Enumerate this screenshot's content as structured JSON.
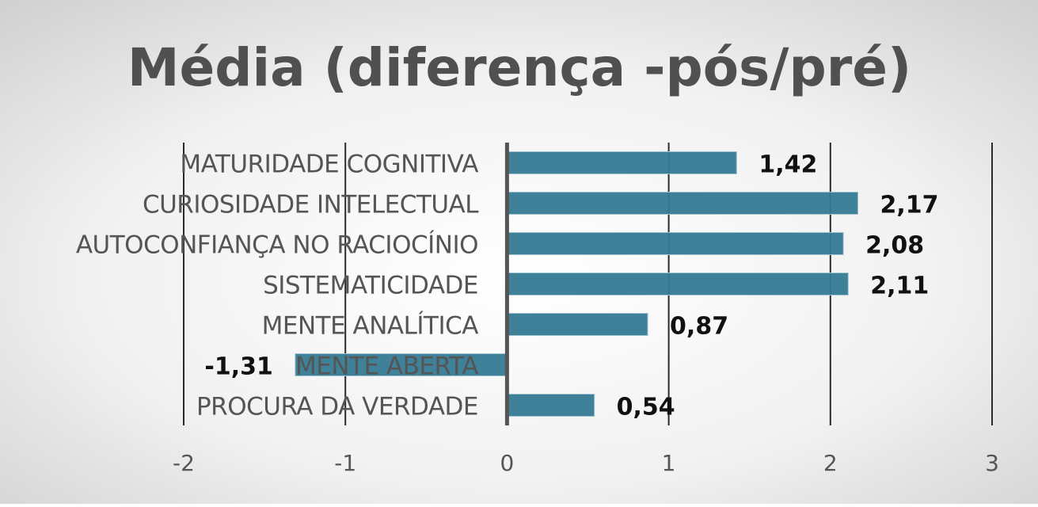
{
  "chart_data": {
    "type": "bar",
    "orientation": "horizontal",
    "title": "Média (diferença -pós/pré)",
    "xlabel": "",
    "ylabel": "",
    "xlim": [
      -2,
      3
    ],
    "x_ticks": [
      "-2",
      "-1",
      "0",
      "1",
      "2",
      "3"
    ],
    "grid": "vertical",
    "legend": "none",
    "bar_color": "#347a94",
    "categories": [
      "MATURIDADE COGNITIVA",
      "CURIOSIDADE INTELECTUAL",
      "AUTOCONFIANÇA NO RACIOCÍNIO",
      "SISTEMATICIDADE",
      "MENTE ANALÍTICA",
      "MENTE ABERTA",
      "PROCURA DA VERDADE"
    ],
    "values": [
      1.42,
      2.17,
      2.08,
      2.11,
      0.87,
      -1.31,
      0.54
    ],
    "value_labels": [
      "1,42",
      "2,17",
      "2,08",
      "2,11",
      "0,87",
      "-1,31",
      "0,54"
    ]
  }
}
